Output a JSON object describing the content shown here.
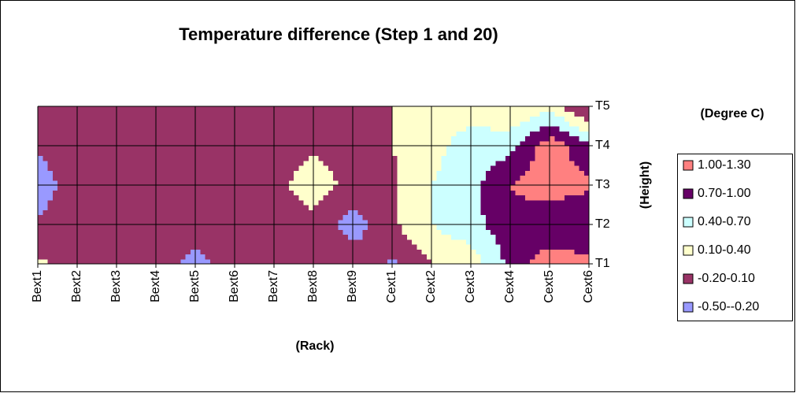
{
  "chart_data": {
    "type": "contour",
    "title": "Temperature difference (Step 1 and 20)",
    "x_label": "(Rack)",
    "y_label": "(Height)",
    "legend_title": "(Degree C)",
    "categories": [
      "Bext1",
      "Bext2",
      "Bext3",
      "Bext4",
      "Bext5",
      "Bext6",
      "Bext7",
      "Bext8",
      "Bext9",
      "Cext1",
      "Cext2",
      "Cext3",
      "Cext4",
      "Cext5",
      "Cext6"
    ],
    "y_categories": [
      "T1",
      "T2",
      "T3",
      "T4",
      "T5"
    ],
    "values": [
      [
        0.15,
        0,
        0,
        0,
        -0.35,
        0,
        0,
        0,
        0,
        -0.25,
        0.1,
        0.2,
        0.8,
        1.2,
        1.1
      ],
      [
        -0.15,
        0,
        0,
        0,
        0,
        0,
        0,
        0,
        -0.35,
        0.05,
        0.4,
        0.6,
        0.9,
        0.7,
        0.7
      ],
      [
        -0.4,
        0,
        0,
        0,
        0,
        0,
        0,
        0.25,
        0,
        0.05,
        0.4,
        0.6,
        1.0,
        1.2,
        1.05
      ],
      [
        -0.15,
        0,
        0,
        0,
        0,
        0,
        0,
        0.05,
        0,
        0.1,
        0.3,
        0.55,
        0.6,
        1.2,
        0.75
      ],
      [
        0,
        0,
        0,
        0,
        0,
        0,
        0,
        0,
        0,
        0.1,
        0.25,
        0.25,
        0.1,
        0.3,
        -0.3
      ]
    ],
    "bands": [
      {
        "label": "1.00-1.30",
        "range": [
          1.0,
          1.3
        ],
        "color": "#ff8080"
      },
      {
        "label": "0.70-1.00",
        "range": [
          0.7,
          1.0
        ],
        "color": "#660066"
      },
      {
        "label": "0.40-0.70",
        "range": [
          0.4,
          0.7
        ],
        "color": "#ccffff"
      },
      {
        "label": "0.10-0.40",
        "range": [
          0.1,
          0.4
        ],
        "color": "#ffffcc"
      },
      {
        "label": "-0.20-0.10",
        "range": [
          -0.2,
          0.1
        ],
        "color": "#993366"
      },
      {
        "label": "-0.50--0.20",
        "range": [
          -0.5,
          -0.2
        ],
        "color": "#9999ff"
      }
    ]
  }
}
